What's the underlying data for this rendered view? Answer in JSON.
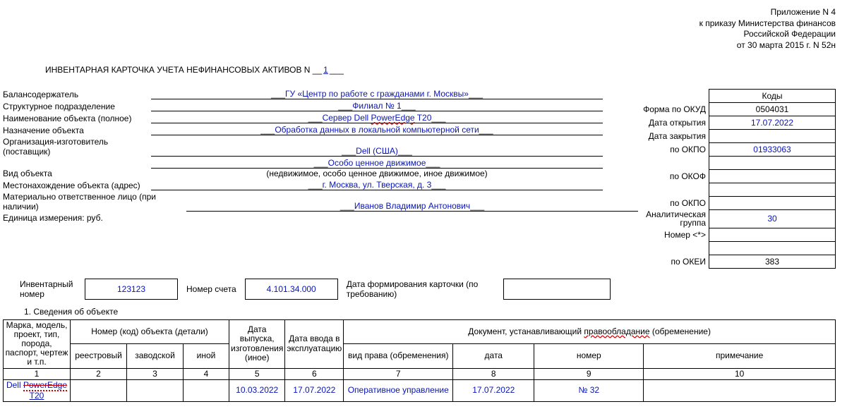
{
  "header": {
    "line1": "Приложение N 4",
    "line2": "к приказу Министерства финансов",
    "line3": "Российской Федерации",
    "line4": "от 30 марта 2015 г. N 52н"
  },
  "title": {
    "text_pre": "ИНВЕНТАРНАЯ КАРТОЧКА УЧЕТА НЕФИНАНСОВЫХ АКТИВОВ N",
    "number": "1"
  },
  "codes": {
    "head": "Коды",
    "rows": [
      {
        "label": "Форма по ОКУД",
        "value": "0504031",
        "blue": false
      },
      {
        "label": "Дата открытия",
        "value": "17.07.2022",
        "blue": true
      },
      {
        "label": "Дата закрытия",
        "value": "",
        "blue": false
      },
      {
        "label": "по ОКПО",
        "value": "01933063",
        "blue": true
      },
      {
        "label": "",
        "value": "",
        "blue": false
      },
      {
        "label": "по ОКОФ",
        "value": "",
        "blue": false
      },
      {
        "label": "",
        "value": "",
        "blue": false
      },
      {
        "label": "по ОКПО",
        "value": "",
        "blue": false
      },
      {
        "label": "Аналитическая группа",
        "value": "30",
        "blue": true,
        "two": true
      },
      {
        "label": "Номер <*>",
        "value": "",
        "blue": false
      },
      {
        "label": "",
        "value": "",
        "blue": false
      },
      {
        "label": "по ОКЕИ",
        "value": "383",
        "blue": false
      }
    ]
  },
  "fields": [
    {
      "label": "Балансодержатель",
      "value": "ГУ «Центр по работе с гражданами г. Москвы»"
    },
    {
      "label": "Структурное подразделение",
      "value": "Филиал № 1"
    },
    {
      "label": "Наименование объекта (полное)",
      "value": "Сервер Dell PowerEdge T20",
      "squiggle": "PowerEdge"
    },
    {
      "label": "Назначение объекта",
      "value": "Обработка данных в локальной компьютерной сети"
    },
    {
      "label": "Организация-изготовитель (поставщик)",
      "value": "Dell (США)"
    },
    {
      "label": "Вид объекта",
      "value": "Особо ценное движимое",
      "sub": "(недвижимое, особо ценное движимое, иное движимое)"
    },
    {
      "label": "Местонахождение объекта (адрес)",
      "value": "г. Москва, ул. Тверская, д. 3"
    },
    {
      "label": "Материально ответственное лицо (при наличии)",
      "value": "Иванов Владимир Антонович",
      "wide": true
    },
    {
      "label": "Единица измерения: руб.",
      "value": null
    }
  ],
  "inv": {
    "inv_label": "Инвентарный номер",
    "inv_value": "123123",
    "acct_label": "Номер счета",
    "acct_value": "4.101.34.000",
    "date_label": "Дата формирования карточки (по требованию)"
  },
  "section1": "1. Сведения об объекте",
  "table1": {
    "headers": {
      "c1": "Марка, модель, проект, тип, порода, паспорт, чертеж и т.п.",
      "span2": "Номер (код) объекта (детали)",
      "c2": "реестровый",
      "c3": "заводской",
      "c4": "иной",
      "c5t": "Дата выпуска, изготовления (иное)",
      "c6t": "Дата ввода в эксплуатацию",
      "span3": "Документ, устанавливающий",
      "span3b": "правообладание",
      "span3c": "(обременение)",
      "c7": "вид права (обременения)",
      "c8": "дата",
      "c9": "номер",
      "c10": "примечание"
    },
    "nums": [
      "1",
      "2",
      "3",
      "4",
      "5",
      "6",
      "7",
      "8",
      "9",
      "10"
    ],
    "row": {
      "c1a": "Dell",
      "c1b": "PowerEdge",
      "c1c": "T20",
      "c2": "",
      "c3": "",
      "c4": "",
      "c5": "10.03.2022",
      "c6": "17.07.2022",
      "c7": "Оперативное управление",
      "c8": "17.07.2022",
      "c9": "№ 32",
      "c10": ""
    }
  },
  "colors": {
    "link": "#0814b8",
    "border": "#000000"
  }
}
